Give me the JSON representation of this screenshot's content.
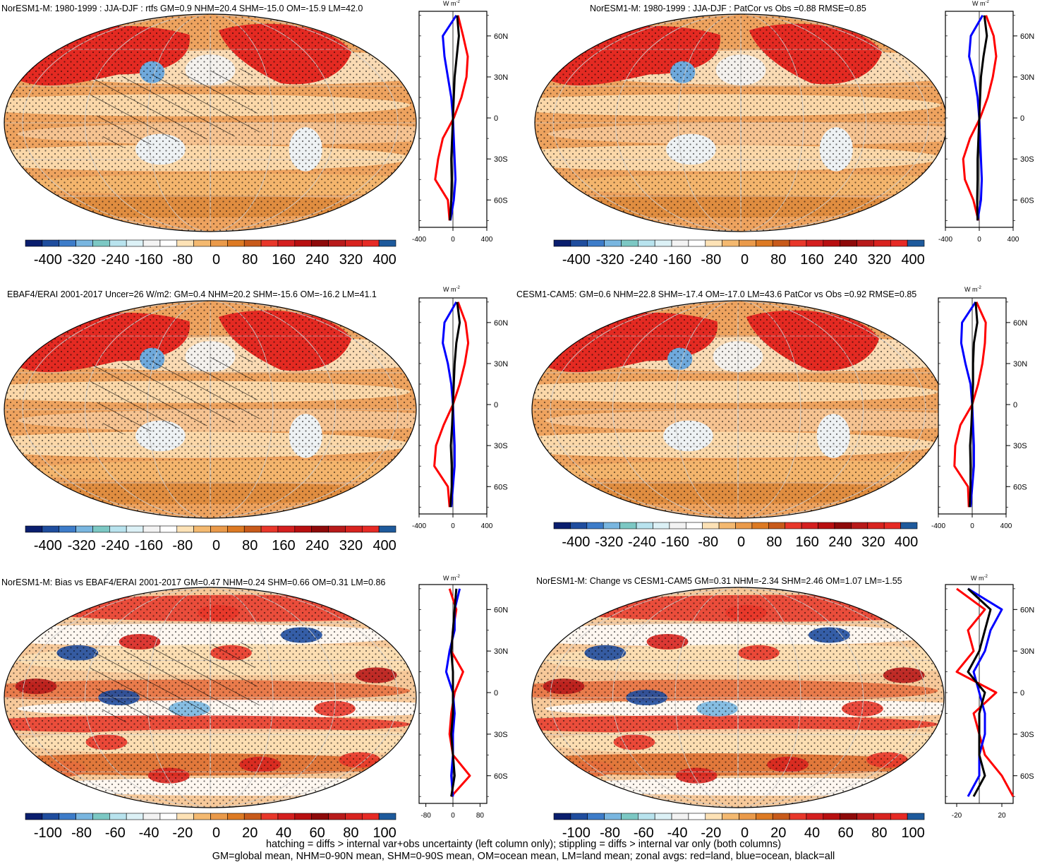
{
  "footer": {
    "line1": "hatching = diffs > internal var+obs uncertainty (left column only); stippling = diffs > internal var only (both columns)",
    "line2": "GM=global mean, NHM=0-90N mean, SHM=0-90S mean, OM=ocean mean, LM=land mean; zonal avgs: red=land, blue=ocean, black=all"
  },
  "units_label": "W m",
  "units_exp": "-2",
  "palette": [
    "#0a1e6e",
    "#1f4d9e",
    "#3d7cc9",
    "#79b6e0",
    "#7cc8c4",
    "#b8e3ee",
    "#dcf1f6",
    "#f3f3f3",
    "#ffffff",
    "#fde2b6",
    "#f4b970",
    "#ea9a4a",
    "#dd7a23",
    "#c85a1a",
    "#e8372a",
    "#d41f1f",
    "#b80f10",
    "#8e0a0a",
    "#b81a1a",
    "#d8231f",
    "#e62a25",
    "#1e5a9c"
  ],
  "zonal_colors": {
    "land": "#ff0000",
    "ocean": "#0000ff",
    "all": "#000000"
  },
  "lat_ticks": [
    "60N",
    "30N",
    "0",
    "30S",
    "60S"
  ],
  "panels": [
    {
      "title": "NorESM1-M: 1980-1999 : JJA-DJF : rtfs GM=0.9 NHM=20.4 SHM=-15.0 OM=-15.9 LM=42.0",
      "cb_labels": [
        "-400",
        "-320",
        "-240",
        "-160",
        "-80",
        "0",
        "80",
        "160",
        "240",
        "320",
        "400"
      ],
      "z_labels": [
        "-400",
        "0",
        "400"
      ],
      "hatch": true
    },
    {
      "title": "NorESM1-M: 1980-1999 : JJA-DJF : PatCor vs Obs =0.88 RMSE=0.85",
      "cb_labels": [
        "-400",
        "-320",
        "-240",
        "-160",
        "-80",
        "0",
        "80",
        "160",
        "240",
        "320",
        "400"
      ],
      "z_labels": [
        "-400",
        "0",
        "400"
      ],
      "hatch": false
    },
    {
      "title": "EBAF4/ERAI 2001-2017 Uncer=26 W/m2: GM=0.4 NHM=20.2 SHM=-15.6 OM=-16.2 LM=41.1",
      "cb_labels": [
        "-400",
        "-320",
        "-240",
        "-160",
        "-80",
        "0",
        "80",
        "160",
        "240",
        "320",
        "400"
      ],
      "z_labels": [
        "-400",
        "0",
        "400"
      ],
      "hatch": true
    },
    {
      "title": "CESM1-CAM5: GM=0.6 NHM=22.8 SHM=-17.4 OM=-17.0 LM=43.6 PatCor vs Obs =0.92 RMSE=0.85",
      "cb_labels": [
        "-400",
        "-320",
        "-240",
        "-160",
        "-80",
        "0",
        "80",
        "160",
        "240",
        "320",
        "400"
      ],
      "z_labels": [
        "-400",
        "0",
        "400"
      ],
      "hatch": false
    },
    {
      "title": "NorESM1-M: Bias vs EBAF4/ERAI 2001-2017 GM=0.47 NHM=0.24 SHM=0.66 OM=0.31 LM=0.86",
      "cb_labels": [
        "-100",
        "-80",
        "-60",
        "-40",
        "-20",
        "0",
        "20",
        "40",
        "60",
        "80",
        "100"
      ],
      "z_labels": [
        "-80",
        "0",
        "80"
      ],
      "hatch": true
    },
    {
      "title": "NorESM1-M: Change vs CESM1-CAM5 GM=0.31 NHM=-2.34 SHM=2.46 OM=1.07 LM=-1.55",
      "cb_labels": [
        "-100",
        "-80",
        "-60",
        "-40",
        "-20",
        "0",
        "20",
        "40",
        "60",
        "80",
        "100"
      ],
      "z_labels": [
        "-20",
        "20"
      ],
      "hatch": false
    }
  ],
  "chart_data": [
    {
      "type": "map",
      "title": "NorESM1-M: 1980-1999 : JJA-DJF : rtfs GM=0.9 NHM=20.4 SHM=-15.0 OM=-15.9 LM=42.0",
      "colorbar_range": [
        -400,
        400
      ],
      "zonal_xlim": [
        -400,
        400
      ],
      "lat_ticks": [
        "60N",
        "30N",
        "0",
        "30S",
        "60S"
      ],
      "zonal_lats": [
        75,
        60,
        45,
        30,
        15,
        0,
        -15,
        -30,
        -45,
        -60,
        -75
      ],
      "zonal_land": [
        60,
        120,
        175,
        160,
        100,
        10,
        -120,
        -175,
        -210,
        -60,
        -40
      ],
      "zonal_ocean": [
        40,
        -120,
        -100,
        -60,
        -20,
        0,
        10,
        20,
        30,
        10,
        -30
      ],
      "zonal_all": [
        50,
        70,
        45,
        20,
        10,
        0,
        -10,
        -20,
        -15,
        -20,
        -35
      ]
    },
    {
      "type": "map",
      "title": "NorESM1-M: 1980-1999 : JJA-DJF : PatCor vs Obs =0.88 RMSE=0.85",
      "colorbar_range": [
        -400,
        400
      ],
      "zonal_xlim": [
        -400,
        400
      ],
      "lat_ticks": [
        "60N",
        "30N",
        "0",
        "30S",
        "60S"
      ],
      "zonal_lats": [
        75,
        60,
        45,
        30,
        15,
        0,
        -15,
        -30,
        -45,
        -60,
        -75
      ],
      "zonal_land": [
        80,
        170,
        200,
        160,
        100,
        10,
        -110,
        -190,
        -170,
        -70,
        -10
      ],
      "zonal_ocean": [
        40,
        -100,
        -120,
        -60,
        -20,
        0,
        10,
        20,
        30,
        20,
        -20
      ],
      "zonal_all": [
        60,
        90,
        50,
        20,
        10,
        0,
        -10,
        -20,
        -20,
        -25,
        -20
      ]
    },
    {
      "type": "map",
      "title": "EBAF4/ERAI 2001-2017 Uncer=26 W/m2: GM=0.4 NHM=20.2 SHM=-15.6 OM=-16.2 LM=41.1",
      "colorbar_range": [
        -400,
        400
      ],
      "zonal_xlim": [
        -400,
        400
      ],
      "lat_ticks": [
        "60N",
        "30N",
        "0",
        "30S",
        "60S"
      ],
      "zonal_lats": [
        75,
        60,
        45,
        30,
        15,
        0,
        -15,
        -30,
        -45,
        -60,
        -75
      ],
      "zonal_land": [
        60,
        150,
        180,
        140,
        80,
        0,
        -110,
        -200,
        -220,
        -60,
        -40
      ],
      "zonal_ocean": [
        40,
        -100,
        -120,
        -60,
        -20,
        0,
        10,
        20,
        20,
        0,
        -20
      ],
      "zonal_all": [
        50,
        80,
        40,
        20,
        10,
        0,
        -10,
        -25,
        -15,
        -15,
        -30
      ]
    },
    {
      "type": "map",
      "title": "CESM1-CAM5: GM=0.6 NHM=22.8 SHM=-17.4 OM=-17.0 LM=43.6 PatCor vs Obs =0.92 RMSE=0.85",
      "colorbar_range": [
        -400,
        400
      ],
      "zonal_xlim": [
        -400,
        400
      ],
      "lat_ticks": [
        "60N",
        "30N",
        "0",
        "30S",
        "60S"
      ],
      "zonal_lats": [
        75,
        60,
        45,
        30,
        15,
        0,
        -15,
        -30,
        -45,
        -60,
        -75
      ],
      "zonal_land": [
        50,
        160,
        150,
        120,
        70,
        0,
        -140,
        -200,
        -210,
        -50,
        -40
      ],
      "zonal_ocean": [
        40,
        -120,
        -130,
        -80,
        -20,
        0,
        10,
        20,
        20,
        0,
        -20
      ],
      "zonal_all": [
        40,
        60,
        20,
        10,
        10,
        0,
        -10,
        -25,
        -20,
        -20,
        -30
      ]
    },
    {
      "type": "map",
      "title": "NorESM1-M: Bias vs EBAF4/ERAI 2001-2017 GM=0.47 NHM=0.24 SHM=0.66 OM=0.31 LM=0.86",
      "colorbar_range": [
        -100,
        100
      ],
      "zonal_xlim": [
        -100,
        100
      ],
      "lat_ticks": [
        "60N",
        "30N",
        "0",
        "30S",
        "60S"
      ],
      "zonal_lats": [
        75,
        60,
        45,
        30,
        15,
        0,
        -15,
        -30,
        -45,
        -60,
        -75
      ],
      "zonal_land": [
        -10,
        10,
        0,
        -5,
        30,
        5,
        -5,
        -10,
        0,
        50,
        -5
      ],
      "zonal_ocean": [
        20,
        5,
        5,
        -10,
        -20,
        0,
        5,
        0,
        0,
        -5,
        0
      ],
      "zonal_all": [
        10,
        5,
        0,
        -5,
        0,
        0,
        0,
        -5,
        0,
        5,
        -5
      ]
    },
    {
      "type": "map",
      "title": "NorESM1-M: Change vs CESM1-CAM5 GM=0.31 NHM=-2.34 SHM=2.46 OM=1.07 LM=-1.55",
      "colorbar_range": [
        -100,
        100
      ],
      "zonal_xlim": [
        -30,
        30
      ],
      "lat_ticks": [
        "60N",
        "30N",
        "0",
        "30S",
        "60S"
      ],
      "zonal_lats": [
        75,
        60,
        45,
        30,
        15,
        0,
        -15,
        -30,
        -45,
        -60,
        -75
      ],
      "zonal_land": [
        -20,
        5,
        -10,
        -5,
        -20,
        15,
        -5,
        0,
        5,
        20,
        30
      ],
      "zonal_ocean": [
        -10,
        20,
        10,
        5,
        -5,
        0,
        5,
        5,
        0,
        0,
        -10
      ],
      "zonal_all": [
        -10,
        10,
        5,
        0,
        -10,
        5,
        0,
        0,
        0,
        5,
        -5
      ]
    }
  ]
}
